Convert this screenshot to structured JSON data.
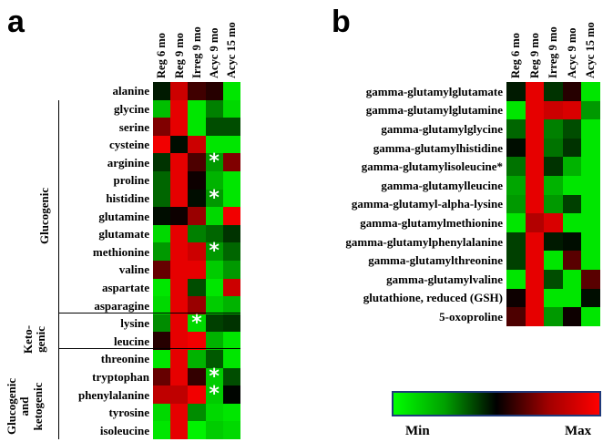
{
  "chart_data": [
    {
      "panel": "a",
      "type": "heatmap",
      "columns": [
        "Reg 6 mo",
        "Reg 9 mo",
        "Irreg 9 mo",
        "Acyc 9 mo",
        "Acyc 15 mo"
      ],
      "rows": [
        "alanine",
        "glycine",
        "serine",
        "cysteine",
        "arginine",
        "proline",
        "histidine",
        "glutamine",
        "glutamate",
        "methionine",
        "valine",
        "aspartate",
        "asparagine",
        "lysine",
        "leucine",
        "threonine",
        "tryptophan",
        "phenylalanine",
        "tyrosine",
        "isoleucine"
      ],
      "values": [
        [
          -0.1,
          0.8,
          0.25,
          0.15,
          -0.9
        ],
        [
          -0.75,
          0.9,
          -0.9,
          -0.5,
          -0.85
        ],
        [
          0.5,
          0.9,
          -0.9,
          -0.3,
          -0.3
        ],
        [
          0.95,
          -0.05,
          0.8,
          -0.9,
          -0.9
        ],
        [
          -0.2,
          0.9,
          0.3,
          -0.6,
          0.5
        ],
        [
          -0.4,
          0.9,
          0.05,
          -0.7,
          -0.9
        ],
        [
          -0.4,
          0.9,
          -0.05,
          -0.6,
          -0.9
        ],
        [
          -0.05,
          0.05,
          0.6,
          -0.85,
          0.95
        ],
        [
          -0.85,
          0.9,
          -0.5,
          -0.4,
          -0.2
        ],
        [
          -0.6,
          0.9,
          0.8,
          -0.6,
          -0.4
        ],
        [
          0.4,
          0.9,
          0.9,
          -0.8,
          -0.6
        ],
        [
          -0.9,
          0.9,
          -0.3,
          -0.9,
          0.8
        ],
        [
          -0.85,
          0.9,
          0.6,
          -0.8,
          -0.7
        ],
        [
          -0.55,
          0.9,
          -0.85,
          -0.25,
          -0.2
        ],
        [
          0.15,
          0.9,
          0.95,
          -0.7,
          -0.9
        ],
        [
          -0.9,
          0.9,
          -0.7,
          -0.35,
          -0.9
        ],
        [
          0.4,
          0.9,
          0.2,
          -0.8,
          -0.3
        ],
        [
          0.75,
          0.75,
          0.95,
          -0.8,
          -0.02
        ],
        [
          -0.85,
          0.9,
          -0.55,
          -0.85,
          -0.9
        ],
        [
          -0.9,
          0.9,
          -0.95,
          -0.8,
          -0.85
        ]
      ],
      "significant": [
        {
          "row": "arginine",
          "column": "Acyc 9 mo"
        },
        {
          "row": "histidine",
          "column": "Acyc 9 mo"
        },
        {
          "row": "methionine",
          "column": "Acyc 9 mo"
        },
        {
          "row": "lysine",
          "column": "Irreg 9 mo"
        },
        {
          "row": "tryptophan",
          "column": "Acyc 9 mo"
        },
        {
          "row": "phenylalanine",
          "column": "Acyc 9 mo"
        }
      ],
      "groups": [
        {
          "label": "Glucogenic",
          "rows": [
            "glycine",
            "asparagine"
          ]
        },
        {
          "label": "Keto- genic",
          "rows": [
            "lysine",
            "leucine"
          ]
        },
        {
          "label": "Glucogenic and ketogenic",
          "rows": [
            "threonine",
            "isoleucine"
          ]
        }
      ]
    },
    {
      "panel": "b",
      "type": "heatmap",
      "columns": [
        "Reg 6 mo",
        "Reg 9 mo",
        "Irreg 9 mo",
        "Acyc 9 mo",
        "Acyc 15 mo"
      ],
      "rows": [
        "gamma-glutamylglutamate",
        "gamma-glutamylglutamine",
        "gamma-glutamylglycine",
        "gamma-glutamylhistidine",
        "gamma-glutamylisoleucine*",
        "gamma-glutamylleucine",
        "gamma-glutamyl-alpha-lysine",
        "gamma-glutamylmethionine",
        "gamma-glutamylphenylalanine",
        "gamma-glutamylthreonine",
        "gamma-glutamylvaline",
        "glutathione, reduced (GSH)",
        "5-oxoproline"
      ],
      "values": [
        [
          -0.1,
          0.9,
          -0.2,
          0.15,
          -0.9
        ],
        [
          -0.9,
          0.9,
          0.8,
          0.85,
          -0.6
        ],
        [
          -0.4,
          0.9,
          -0.5,
          -0.3,
          -0.9
        ],
        [
          -0.05,
          0.9,
          -0.45,
          -0.2,
          -0.9
        ],
        [
          -0.45,
          0.9,
          -0.2,
          -0.7,
          -0.9
        ],
        [
          -0.65,
          0.9,
          -0.7,
          -0.9,
          -0.9
        ],
        [
          -0.6,
          0.9,
          -0.6,
          -0.25,
          -0.9
        ],
        [
          -0.9,
          0.7,
          0.85,
          -0.9,
          -0.9
        ],
        [
          -0.25,
          0.9,
          -0.1,
          -0.05,
          -0.9
        ],
        [
          -0.25,
          0.9,
          -0.9,
          0.35,
          -0.9
        ],
        [
          -0.9,
          0.9,
          -0.3,
          -0.9,
          0.35
        ],
        [
          0.05,
          0.9,
          -0.9,
          -0.9,
          -0.05
        ],
        [
          0.3,
          0.9,
          -0.6,
          0.05,
          -0.9
        ]
      ]
    }
  ],
  "legend": {
    "min_label": "Min",
    "max_label": "Max",
    "min_color": "#00ff00",
    "mid_color": "#000000",
    "max_color": "#ff0000"
  }
}
